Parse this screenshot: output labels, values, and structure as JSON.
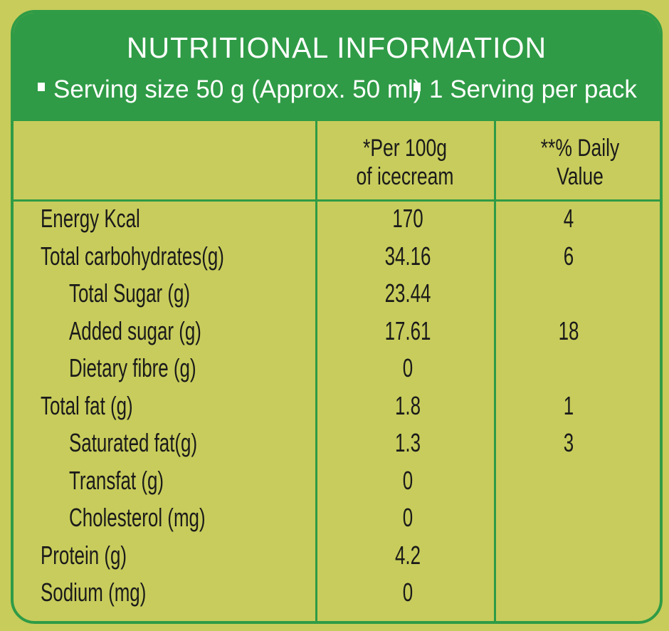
{
  "title": "NUTRITIONAL INFORMATION",
  "serving": {
    "size": "Serving size 50 g (Approx. 50 ml)",
    "per_pack": "1 Serving per pack"
  },
  "columns": {
    "per100_line1": "*Per 100g",
    "per100_line2": "of icecream",
    "dv_line1": "**% Daily",
    "dv_line2": "Value"
  },
  "rows": [
    {
      "label": "Energy Kcal",
      "per100": "170",
      "dv": "4",
      "indent": false
    },
    {
      "label": "Total carbohydrates(g)",
      "per100": "34.16",
      "dv": "6",
      "indent": false
    },
    {
      "label": "Total Sugar (g)",
      "per100": "23.44",
      "dv": "",
      "indent": true
    },
    {
      "label": "Added sugar (g)",
      "per100": "17.61",
      "dv": "18",
      "indent": true
    },
    {
      "label": "Dietary fibre (g)",
      "per100": "0",
      "dv": "",
      "indent": true
    },
    {
      "label": "Total fat (g)",
      "per100": "1.8",
      "dv": "1",
      "indent": false
    },
    {
      "label": "Saturated fat(g)",
      "per100": "1.3",
      "dv": "3",
      "indent": true
    },
    {
      "label": "Transfat (g)",
      "per100": "0",
      "dv": "",
      "indent": true
    },
    {
      "label": "Cholesterol (mg)",
      "per100": "0",
      "dv": "",
      "indent": true
    },
    {
      "label": "Protein (g)",
      "per100": "4.2",
      "dv": "",
      "indent": false
    },
    {
      "label": "Sodium (mg)",
      "per100": "0",
      "dv": "",
      "indent": false
    }
  ],
  "colors": {
    "header_green": "#2f9b46",
    "background_lime": "#c8cc5c",
    "text": "#1a1a1a"
  }
}
